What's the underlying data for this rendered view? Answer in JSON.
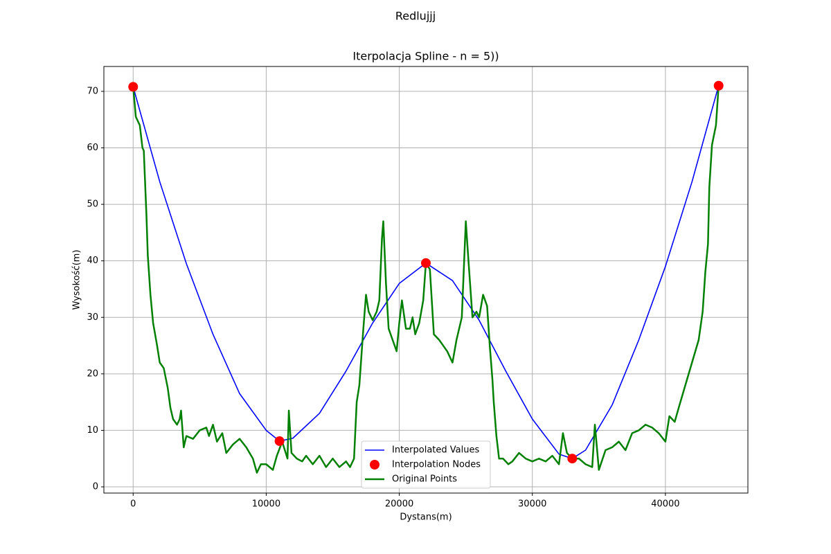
{
  "chart_data": {
    "type": "line",
    "title": "Redlujjj",
    "subtitle": "Iterpolacja Spline - n = 5))",
    "x_label": "Dystans(m)",
    "y_label": "Wysokość(m)",
    "xlim": [
      -2200,
      46200
    ],
    "ylim": [
      -1.1,
      74.4
    ],
    "xticks": [
      0,
      10000,
      20000,
      30000,
      40000
    ],
    "yticks": [
      0,
      10,
      20,
      30,
      40,
      50,
      60,
      70
    ],
    "grid": true,
    "legend": "lower center",
    "series": [
      {
        "name": "Interpolated Values",
        "color": "#0000ff",
        "style": "line",
        "x": [
          0,
          2000,
          4000,
          6000,
          8000,
          10000,
          11000,
          12000,
          14000,
          16000,
          18000,
          20000,
          22000,
          24000,
          26000,
          28000,
          30000,
          32000,
          33000,
          34000,
          36000,
          38000,
          40000,
          42000,
          44000
        ],
        "values": [
          70.8,
          54,
          39.5,
          27,
          16.5,
          10,
          8.1,
          8.6,
          13,
          20.5,
          29,
          36,
          39.6,
          36.5,
          29.5,
          20.5,
          12,
          5.8,
          5.0,
          6.5,
          14.5,
          26,
          39,
          54,
          71.0
        ]
      },
      {
        "name": "Interpolation Nodes",
        "color": "#ff0000",
        "style": "marker",
        "x": [
          0,
          11000,
          22000,
          33000,
          44000
        ],
        "values": [
          70.8,
          8.1,
          39.6,
          5.0,
          71.0
        ]
      },
      {
        "name": "Original Points",
        "color": "#008000",
        "style": "line",
        "x": [
          0,
          200,
          500,
          700,
          800,
          1000,
          1100,
          1300,
          1500,
          1800,
          2000,
          2300,
          2600,
          2800,
          3000,
          3300,
          3500,
          3600,
          3800,
          4000,
          4500,
          5000,
          5500,
          5700,
          6000,
          6300,
          6700,
          7000,
          7500,
          8000,
          8500,
          9000,
          9300,
          9600,
          10000,
          10500,
          10800,
          11200,
          11600,
          11700,
          11900,
          12300,
          12700,
          13000,
          13500,
          14000,
          14500,
          15000,
          15500,
          16000,
          16300,
          16600,
          16800,
          17000,
          17300,
          17500,
          17700,
          18000,
          18300,
          18500,
          18700,
          18800,
          19000,
          19200,
          19500,
          19800,
          20000,
          20200,
          20500,
          20800,
          21000,
          21200,
          21500,
          21800,
          22000,
          22300,
          22600,
          23000,
          23300,
          23600,
          24000,
          24300,
          24700,
          25000,
          25200,
          25500,
          25800,
          26000,
          26300,
          26600,
          26800,
          27000,
          27100,
          27300,
          27500,
          27800,
          28200,
          28500,
          29000,
          29500,
          30000,
          30500,
          31000,
          31500,
          32000,
          32300,
          32600,
          33000,
          33500,
          34000,
          34500,
          34700,
          35000,
          35500,
          36000,
          36500,
          37000,
          37500,
          38000,
          38500,
          39000,
          39500,
          40000,
          40300,
          40700,
          41000,
          41500,
          42000,
          42500,
          42800,
          43000,
          43200,
          43300,
          43500,
          43800,
          44000
        ],
        "values": [
          70.8,
          65.5,
          64,
          60,
          59.5,
          48,
          41,
          34,
          29,
          25,
          22,
          21,
          17.5,
          14,
          12,
          11,
          12,
          13.5,
          7,
          9,
          8.5,
          10,
          10.5,
          9,
          11,
          8,
          9.5,
          6,
          7.5,
          8.5,
          7,
          5,
          2.5,
          4,
          4,
          3,
          5.5,
          8,
          5,
          13.5,
          6,
          5,
          4.5,
          5.5,
          4,
          5.5,
          3.5,
          5,
          3.5,
          4.5,
          3.5,
          5,
          15,
          18,
          28,
          34,
          31,
          29.5,
          31,
          33,
          44,
          47,
          36,
          28,
          26,
          24,
          29,
          33,
          28,
          28,
          30,
          27,
          29,
          33,
          39.6,
          38.5,
          27,
          26,
          25,
          24,
          22,
          26,
          30,
          47,
          40,
          30,
          31,
          30,
          34,
          32,
          25,
          19,
          15,
          9,
          5,
          5,
          4,
          4.5,
          6,
          5,
          4.5,
          5,
          4.5,
          5.5,
          4,
          9.5,
          6,
          5.0,
          5,
          4,
          3.5,
          11,
          3,
          6.5,
          7,
          8,
          6.5,
          9.5,
          10,
          11,
          10.5,
          9.5,
          8,
          12.5,
          11.5,
          14,
          18,
          22,
          26,
          31,
          38,
          43,
          53,
          60.5,
          64,
          71.0
        ]
      }
    ]
  }
}
